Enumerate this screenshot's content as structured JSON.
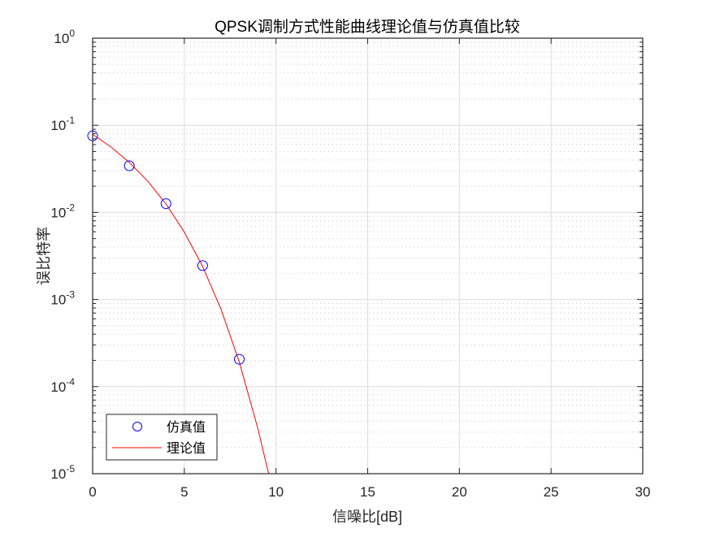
{
  "chart_data": {
    "type": "line",
    "title": "QPSK调制方式性能曲线理论值与仿真值比较",
    "xlabel": "信噪比[dB]",
    "ylabel": "误比特率",
    "xlim": [
      0,
      30
    ],
    "ylim": [
      1e-05,
      1
    ],
    "yscale": "log",
    "x_ticks": [
      "0",
      "5",
      "10",
      "15",
      "20",
      "25",
      "30"
    ],
    "y_ticks": [
      {
        "base": "10",
        "exp": "0"
      },
      {
        "base": "10",
        "exp": "-1"
      },
      {
        "base": "10",
        "exp": "-2"
      },
      {
        "base": "10",
        "exp": "-3"
      },
      {
        "base": "10",
        "exp": "-4"
      },
      {
        "base": "10",
        "exp": "-5"
      }
    ],
    "grid": true,
    "minor_grid": true,
    "legend_position": "lower left",
    "series": [
      {
        "name": "仿真值",
        "style": "markers",
        "marker": "circle",
        "color": "#0000ff",
        "x": [
          0,
          2,
          4,
          6,
          8
        ],
        "y": [
          0.0757,
          0.0343,
          0.0126,
          0.00245,
          0.000206
        ]
      },
      {
        "name": "理论值",
        "style": "line",
        "color": "#ff0000",
        "x": [
          0,
          1,
          2,
          3,
          4,
          5,
          6,
          7,
          8,
          9,
          9.6
        ],
        "y": [
          0.0786,
          0.0563,
          0.0375,
          0.0229,
          0.0125,
          0.00595,
          0.00239,
          0.000773,
          0.000191,
          3.36e-05,
          1e-05
        ]
      }
    ]
  }
}
